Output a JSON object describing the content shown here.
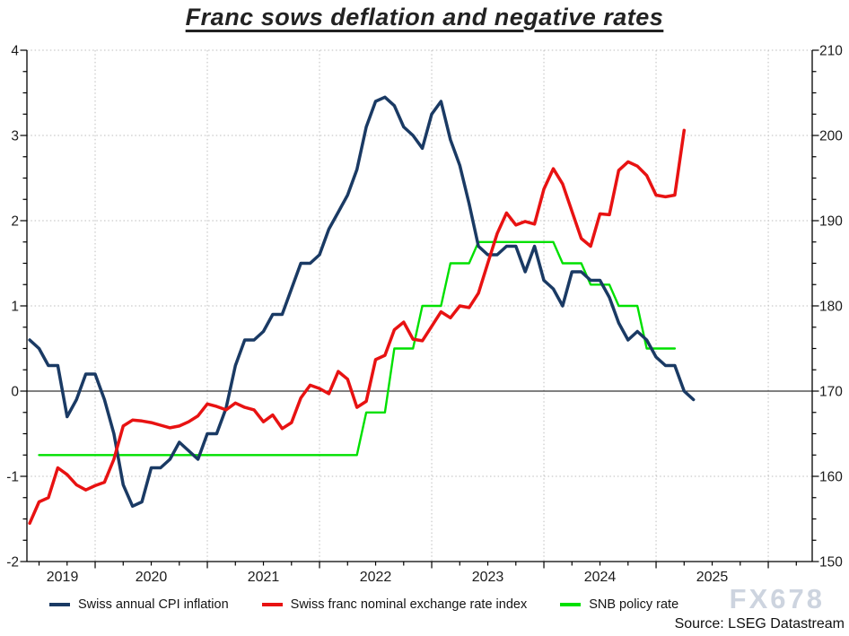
{
  "title": "Franc sows deflation and negative rates",
  "source": "Source: LSEG Datastream",
  "watermark": "FX678",
  "legend": [
    {
      "label": "Swiss annual CPI inflation",
      "color": "#1a3a64"
    },
    {
      "label": "Swiss franc nominal exchange rate index",
      "color": "#e81212"
    },
    {
      "label": "SNB policy rate",
      "color": "#00e000"
    }
  ],
  "chart_data": {
    "type": "line",
    "title": "Franc sows deflation and negative rates",
    "freq": "monthly",
    "x_start": "2019-06",
    "x_end": "2025-05",
    "x_tick_labels": [
      "2019",
      "2020",
      "2021",
      "2022",
      "2023",
      "2024",
      "2025"
    ],
    "grid": true,
    "legend_position": "bottom",
    "left_axis": {
      "range": [
        -2,
        4
      ],
      "ticks": [
        4,
        3,
        2,
        1,
        0,
        -1,
        -2
      ],
      "minor_step": 0.25,
      "zero_line": 0
    },
    "right_axis": {
      "range": [
        150,
        210
      ],
      "ticks": [
        210,
        200,
        190,
        180,
        170,
        160,
        150
      ],
      "minor_step": 2.5
    },
    "series": [
      {
        "name": "SNB policy rate",
        "axis": "left",
        "color": "#00e000",
        "width": 2.4,
        "values": [
          null,
          -0.75,
          -0.75,
          -0.75,
          -0.75,
          -0.75,
          -0.75,
          -0.75,
          -0.75,
          -0.75,
          -0.75,
          -0.75,
          -0.75,
          -0.75,
          -0.75,
          -0.75,
          -0.75,
          -0.75,
          -0.75,
          -0.75,
          -0.75,
          -0.75,
          -0.75,
          -0.75,
          -0.75,
          -0.75,
          -0.75,
          -0.75,
          -0.75,
          -0.75,
          -0.75,
          -0.75,
          -0.75,
          -0.75,
          -0.75,
          -0.75,
          -0.25,
          -0.25,
          -0.25,
          0.5,
          0.5,
          0.5,
          1.0,
          1.0,
          1.0,
          1.5,
          1.5,
          1.5,
          1.75,
          1.75,
          1.75,
          1.75,
          1.75,
          1.75,
          1.75,
          1.75,
          1.75,
          1.5,
          1.5,
          1.5,
          1.25,
          1.25,
          1.25,
          1.0,
          1.0,
          1.0,
          0.5,
          0.5,
          0.5,
          0.5,
          null,
          null
        ]
      },
      {
        "name": "Swiss annual CPI inflation",
        "axis": "left",
        "color": "#1a3a64",
        "width": 3.5,
        "values": [
          0.6,
          0.5,
          0.3,
          0.3,
          -0.3,
          -0.1,
          0.2,
          0.2,
          -0.1,
          -0.5,
          -1.1,
          -1.35,
          -1.3,
          -0.9,
          -0.9,
          -0.8,
          -0.6,
          -0.7,
          -0.8,
          -0.5,
          -0.5,
          -0.2,
          0.3,
          0.6,
          0.6,
          0.7,
          0.9,
          0.9,
          1.2,
          1.5,
          1.5,
          1.6,
          1.9,
          2.1,
          2.3,
          2.6,
          3.1,
          3.4,
          3.45,
          3.35,
          3.1,
          3.0,
          2.85,
          3.25,
          3.4,
          2.95,
          2.65,
          2.2,
          1.7,
          1.6,
          1.6,
          1.7,
          1.7,
          1.4,
          1.7,
          1.3,
          1.2,
          1.0,
          1.4,
          1.4,
          1.3,
          1.3,
          1.1,
          0.8,
          0.6,
          0.7,
          0.6,
          0.4,
          0.3,
          0.3,
          0.0,
          -0.1
        ]
      },
      {
        "name": "Swiss franc nominal exchange rate index",
        "axis": "right",
        "color": "#e81212",
        "width": 3.5,
        "values": [
          154.5,
          157.0,
          157.5,
          161.0,
          160.2,
          159.0,
          158.4,
          158.9,
          159.3,
          162.0,
          165.9,
          166.6,
          166.5,
          166.3,
          166.0,
          165.7,
          165.9,
          166.4,
          167.1,
          168.5,
          168.2,
          167.8,
          168.6,
          168.1,
          167.8,
          166.4,
          167.2,
          165.6,
          166.3,
          169.2,
          170.7,
          170.3,
          169.7,
          172.3,
          171.4,
          168.1,
          168.8,
          173.7,
          174.2,
          177.2,
          178.1,
          176.1,
          175.9,
          177.6,
          179.3,
          178.6,
          180.0,
          179.8,
          181.5,
          185.0,
          188.5,
          190.9,
          189.5,
          189.9,
          189.6,
          193.7,
          196.1,
          194.3,
          191.1,
          187.9,
          187.0,
          190.8,
          190.7,
          195.9,
          196.9,
          196.4,
          195.3,
          193.0,
          192.8,
          193.0,
          200.6,
          null
        ]
      }
    ]
  }
}
